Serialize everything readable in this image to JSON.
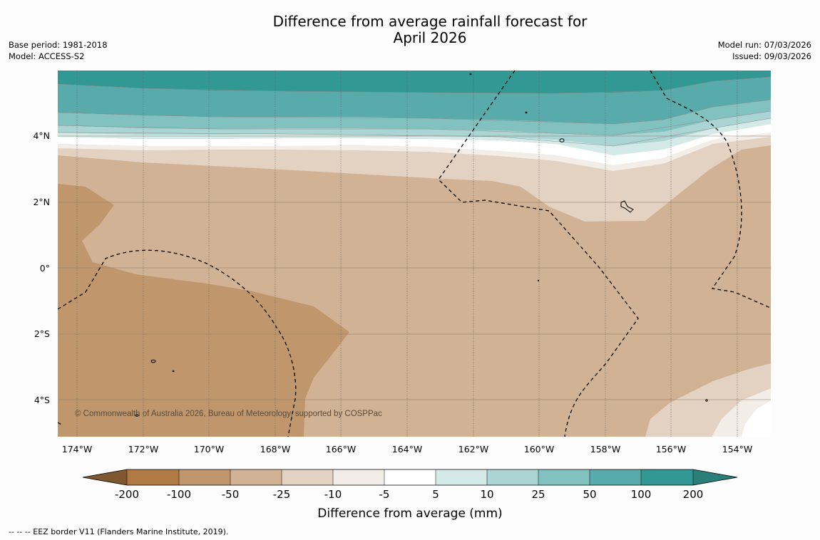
{
  "title_line1": "Difference from average rainfall forecast for",
  "title_line2": "April 2026",
  "meta_left": {
    "base_period": "Base period: 1981-2018",
    "model": "Model: ACCESS-S2"
  },
  "meta_right": {
    "model_run": "Model run: 07/03/2026",
    "issued": "Issued: 09/03/2026"
  },
  "map": {
    "lat_labels": [
      "4°N",
      "2°N",
      "0°",
      "2°S",
      "4°S"
    ],
    "lon_labels": [
      "174°W",
      "172°W",
      "170°W",
      "168°W",
      "166°W",
      "164°W",
      "162°W",
      "160°W",
      "158°W",
      "156°W",
      "154°W"
    ],
    "copyright": "© Commonwealth of Australia 2026, Bureau of Meteorology, supported by COSPPac",
    "colors": {
      "c_100_200_dry": "#b07a45",
      "c_50_100_dry": "#c0976d",
      "c_25_50_dry": "#d2b294",
      "c_10_25_dry": "#e3d2c2",
      "c_5_10_dry": "#f2ede6",
      "c_neutral": "#ffffff",
      "c_5_10_wet": "#d3eae8",
      "c_10_25_wet": "#aad5d4",
      "c_25_50_wet": "#81c2c0",
      "c_50_100_wet": "#58aaab",
      "c_100_200_wet": "#329894",
      "c_gt200_wet": "#2b7f7b"
    }
  },
  "legend": {
    "ticks": [
      "-200",
      "-100",
      "-50",
      "-25",
      "-10",
      "-5",
      "5",
      "10",
      "25",
      "50",
      "100",
      "200"
    ],
    "label": "Difference from average (mm)"
  },
  "footer": "--  --  -- EEZ border V11 (Flanders Marine Institute, 2019)."
}
